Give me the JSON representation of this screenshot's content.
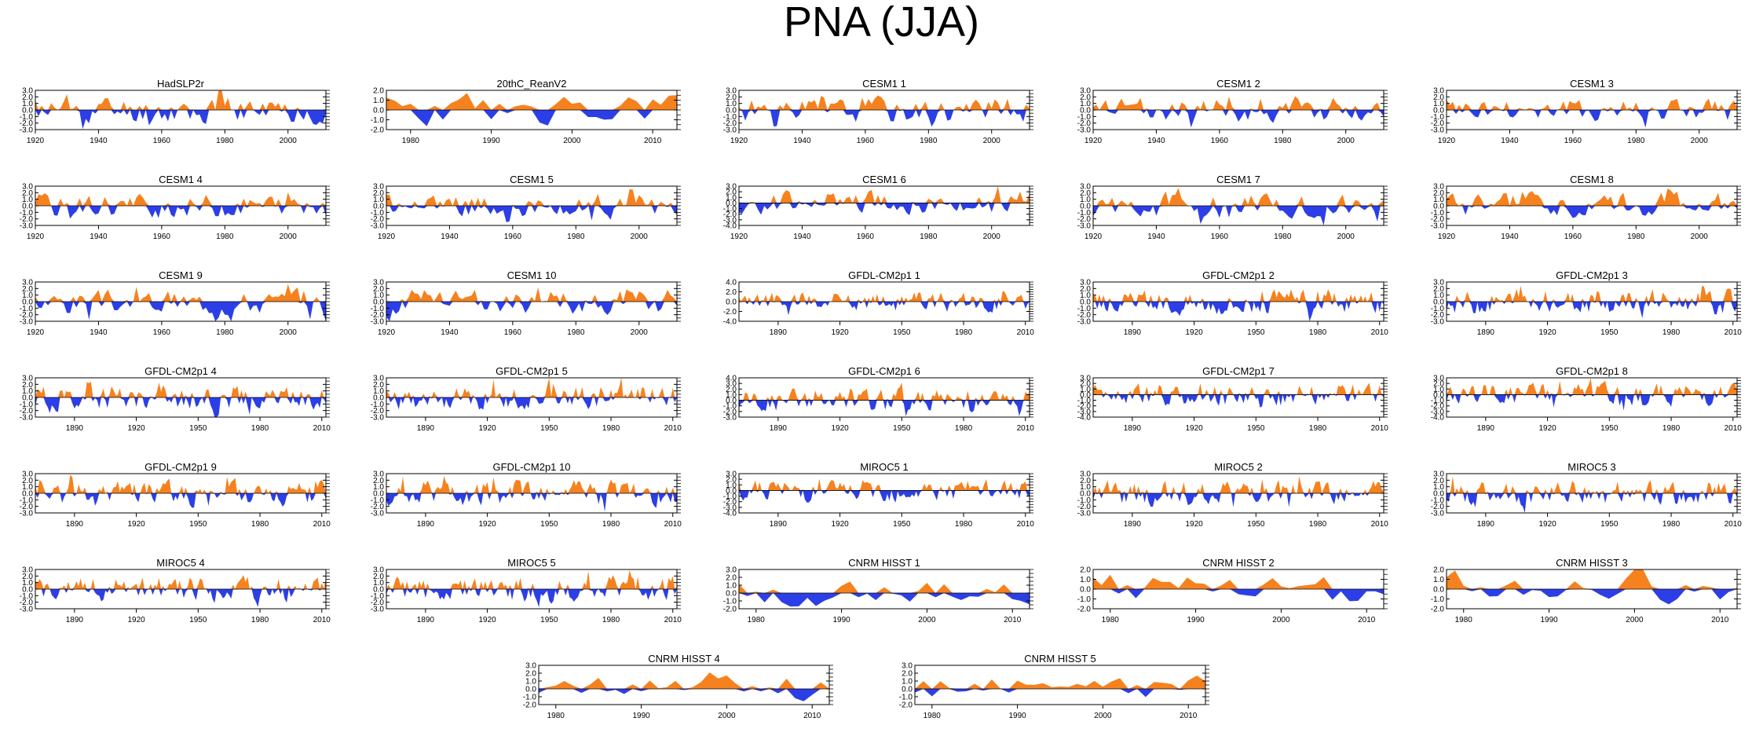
{
  "figure": {
    "title": "PNA (JJA)",
    "colors": {
      "positive": "#f5821f",
      "negative": "#2c3fe6",
      "frame": "#000000",
      "zero_line": "#000000"
    }
  },
  "chart_data": [
    {
      "type": "area",
      "title": "HadSLP2r",
      "x_range": [
        1920,
        2012
      ],
      "x_ticks": [
        1920,
        1940,
        1960,
        1980,
        2000
      ],
      "ylim": [
        -3,
        3
      ],
      "y_ticks": [
        "3.0",
        "2.0",
        "1.0",
        "0.0",
        "-1.0",
        "-2.0",
        "-3.0"
      ],
      "sample_count": 93,
      "seed": 11,
      "amplitude": 1.7,
      "values_note": "yearly index values"
    },
    {
      "type": "area",
      "title": "20thC_ReanV2",
      "x_range": [
        1977,
        2013
      ],
      "x_ticks": [
        1980,
        1990,
        2000,
        2010
      ],
      "ylim": [
        -2,
        2
      ],
      "y_ticks": [
        "2.0",
        "1.0",
        "0.0",
        "-1.0",
        "-2.0"
      ],
      "sample_count": 37,
      "seed": 23,
      "amplitude": 1.3
    },
    {
      "type": "area",
      "title": "CESM1 1",
      "x_range": [
        1920,
        2012
      ],
      "x_ticks": [
        1920,
        1940,
        1960,
        1980,
        2000
      ],
      "ylim": [
        -3,
        3
      ],
      "y_ticks": [
        "3.0",
        "2.0",
        "1.0",
        "0.0",
        "-1.0",
        "-2.0",
        "-3.0"
      ],
      "sample_count": 93,
      "seed": 31,
      "amplitude": 1.5
    },
    {
      "type": "area",
      "title": "CESM1 2",
      "x_range": [
        1920,
        2012
      ],
      "x_ticks": [
        1920,
        1940,
        1960,
        1980,
        2000
      ],
      "ylim": [
        -3,
        3
      ],
      "y_ticks": [
        "3.0",
        "2.0",
        "1.0",
        "0.0",
        "-1.0",
        "-2.0",
        "-3.0"
      ],
      "sample_count": 93,
      "seed": 37,
      "amplitude": 1.5
    },
    {
      "type": "area",
      "title": "CESM1 3",
      "x_range": [
        1920,
        2012
      ],
      "x_ticks": [
        1920,
        1940,
        1960,
        1980,
        2000
      ],
      "ylim": [
        -3,
        3
      ],
      "y_ticks": [
        "3.0",
        "2.0",
        "1.0",
        "0.0",
        "-1.0",
        "-2.0",
        "-3.0"
      ],
      "sample_count": 93,
      "seed": 41,
      "amplitude": 1.5
    },
    {
      "type": "area",
      "title": "CESM1 4",
      "x_range": [
        1920,
        2012
      ],
      "x_ticks": [
        1920,
        1940,
        1960,
        1980,
        2000
      ],
      "ylim": [
        -3,
        3
      ],
      "y_ticks": [
        "3.0",
        "2.0",
        "1.0",
        "0.0",
        "-1.0",
        "-2.0",
        "-3.0"
      ],
      "sample_count": 93,
      "seed": 43,
      "amplitude": 1.5
    },
    {
      "type": "area",
      "title": "CESM1 5",
      "x_range": [
        1920,
        2012
      ],
      "x_ticks": [
        1920,
        1940,
        1960,
        1980,
        2000
      ],
      "ylim": [
        -3,
        3
      ],
      "y_ticks": [
        "3.0",
        "2.0",
        "1.0",
        "0.0",
        "-1.0",
        "-2.0",
        "-3.0"
      ],
      "sample_count": 93,
      "seed": 47,
      "amplitude": 1.5
    },
    {
      "type": "area",
      "title": "CESM1 6",
      "x_range": [
        1920,
        2012
      ],
      "x_ticks": [
        1920,
        1940,
        1960,
        1980,
        2000
      ],
      "ylim": [
        -4,
        3
      ],
      "y_ticks": [
        "3.0",
        "2.0",
        "1.0",
        "0.0",
        "-1.0",
        "-2.0",
        "-3.0",
        "-4.0"
      ],
      "sample_count": 93,
      "seed": 53,
      "amplitude": 1.6
    },
    {
      "type": "area",
      "title": "CESM1 7",
      "x_range": [
        1920,
        2012
      ],
      "x_ticks": [
        1920,
        1940,
        1960,
        1980,
        2000
      ],
      "ylim": [
        -3,
        3
      ],
      "y_ticks": [
        "3.0",
        "2.0",
        "1.0",
        "0.0",
        "-1.0",
        "-2.0",
        "-3.0"
      ],
      "sample_count": 93,
      "seed": 59,
      "amplitude": 1.5
    },
    {
      "type": "area",
      "title": "CESM1 8",
      "x_range": [
        1920,
        2012
      ],
      "x_ticks": [
        1920,
        1940,
        1960,
        1980,
        2000
      ],
      "ylim": [
        -3,
        3
      ],
      "y_ticks": [
        "3.0",
        "2.0",
        "1.0",
        "0.0",
        "-1.0",
        "-2.0",
        "-3.0"
      ],
      "sample_count": 93,
      "seed": 61,
      "amplitude": 1.5
    },
    {
      "type": "area",
      "title": "CESM1 9",
      "x_range": [
        1920,
        2012
      ],
      "x_ticks": [
        1920,
        1940,
        1960,
        1980,
        2000
      ],
      "ylim": [
        -3,
        3
      ],
      "y_ticks": [
        "3.0",
        "2.0",
        "1.0",
        "0.0",
        "-1.0",
        "-2.0",
        "-3.0"
      ],
      "sample_count": 93,
      "seed": 67,
      "amplitude": 1.5
    },
    {
      "type": "area",
      "title": "CESM1 10",
      "x_range": [
        1920,
        2012
      ],
      "x_ticks": [
        1920,
        1940,
        1960,
        1980,
        2000
      ],
      "ylim": [
        -3,
        3
      ],
      "y_ticks": [
        "3.0",
        "2.0",
        "1.0",
        "0.0",
        "-1.0",
        "-2.0",
        "-3.0"
      ],
      "sample_count": 93,
      "seed": 71,
      "amplitude": 1.5
    },
    {
      "type": "area",
      "title": "GFDL-CM2p1 1",
      "x_range": [
        1871,
        2012
      ],
      "x_ticks": [
        1890,
        1920,
        1950,
        1980,
        2010
      ],
      "ylim": [
        -4,
        4
      ],
      "y_ticks": [
        "4.0",
        "2.0",
        "0.0",
        "-2.0",
        "-4.0"
      ],
      "sample_count": 142,
      "seed": 73,
      "amplitude": 1.6
    },
    {
      "type": "area",
      "title": "GFDL-CM2p1 2",
      "x_range": [
        1871,
        2012
      ],
      "x_ticks": [
        1890,
        1920,
        1950,
        1980,
        2010
      ],
      "ylim": [
        -3,
        3
      ],
      "y_ticks": [
        "3.0",
        "2.0",
        "1.0",
        "0.0",
        "-1.0",
        "-2.0",
        "-3.0"
      ],
      "sample_count": 142,
      "seed": 79,
      "amplitude": 1.5
    },
    {
      "type": "area",
      "title": "GFDL-CM2p1 3",
      "x_range": [
        1871,
        2012
      ],
      "x_ticks": [
        1890,
        1920,
        1950,
        1980,
        2010
      ],
      "ylim": [
        -3,
        3
      ],
      "y_ticks": [
        "3.0",
        "2.0",
        "1.0",
        "0.0",
        "-1.0",
        "-2.0",
        "-3.0"
      ],
      "sample_count": 142,
      "seed": 83,
      "amplitude": 1.5
    },
    {
      "type": "area",
      "title": "GFDL-CM2p1 4",
      "x_range": [
        1871,
        2012
      ],
      "x_ticks": [
        1890,
        1920,
        1950,
        1980,
        2010
      ],
      "ylim": [
        -3,
        3
      ],
      "y_ticks": [
        "3.0",
        "2.0",
        "1.0",
        "0.0",
        "-1.0",
        "-2.0",
        "-3.0"
      ],
      "sample_count": 142,
      "seed": 89,
      "amplitude": 1.5
    },
    {
      "type": "area",
      "title": "GFDL-CM2p1 5",
      "x_range": [
        1871,
        2012
      ],
      "x_ticks": [
        1890,
        1920,
        1950,
        1980,
        2010
      ],
      "ylim": [
        -3,
        3
      ],
      "y_ticks": [
        "3.0",
        "2.0",
        "1.0",
        "0.0",
        "-1.0",
        "-2.0",
        "-3.0"
      ],
      "sample_count": 142,
      "seed": 97,
      "amplitude": 1.5
    },
    {
      "type": "area",
      "title": "GFDL-CM2p1 6",
      "x_range": [
        1871,
        2012
      ],
      "x_ticks": [
        1890,
        1920,
        1950,
        1980,
        2010
      ],
      "ylim": [
        -3,
        4
      ],
      "y_ticks": [
        "4.0",
        "3.0",
        "2.0",
        "1.0",
        "0.0",
        "-1.0",
        "-2.0",
        "-3.0"
      ],
      "sample_count": 142,
      "seed": 101,
      "amplitude": 1.6
    },
    {
      "type": "area",
      "title": "GFDL-CM2p1 7",
      "x_range": [
        1871,
        2012
      ],
      "x_ticks": [
        1890,
        1920,
        1950,
        1980,
        2010
      ],
      "ylim": [
        -4,
        3
      ],
      "y_ticks": [
        "3.0",
        "2.0",
        "1.0",
        "0.0",
        "-1.0",
        "-2.0",
        "-3.0",
        "-4.0"
      ],
      "sample_count": 142,
      "seed": 103,
      "amplitude": 1.6
    },
    {
      "type": "area",
      "title": "GFDL-CM2p1 8",
      "x_range": [
        1871,
        2012
      ],
      "x_ticks": [
        1890,
        1920,
        1950,
        1980,
        2010
      ],
      "ylim": [
        -4,
        3
      ],
      "y_ticks": [
        "3.0",
        "2.0",
        "1.0",
        "0.0",
        "-1.0",
        "-2.0",
        "-3.0",
        "-4.0"
      ],
      "sample_count": 142,
      "seed": 107,
      "amplitude": 1.6
    },
    {
      "type": "area",
      "title": "GFDL-CM2p1 9",
      "x_range": [
        1871,
        2012
      ],
      "x_ticks": [
        1890,
        1920,
        1950,
        1980,
        2010
      ],
      "ylim": [
        -3,
        3
      ],
      "y_ticks": [
        "3.0",
        "2.0",
        "1.0",
        "0.0",
        "-1.0",
        "-2.0",
        "-3.0"
      ],
      "sample_count": 142,
      "seed": 109,
      "amplitude": 1.5
    },
    {
      "type": "area",
      "title": "GFDL-CM2p1 10",
      "x_range": [
        1871,
        2012
      ],
      "x_ticks": [
        1890,
        1920,
        1950,
        1980,
        2010
      ],
      "ylim": [
        -3,
        3
      ],
      "y_ticks": [
        "3.0",
        "2.0",
        "1.0",
        "0.0",
        "-1.0",
        "-2.0",
        "-3.0"
      ],
      "sample_count": 142,
      "seed": 113,
      "amplitude": 1.5
    },
    {
      "type": "area",
      "title": "MIROC5 1",
      "x_range": [
        1871,
        2012
      ],
      "x_ticks": [
        1890,
        1920,
        1950,
        1980,
        2010
      ],
      "ylim": [
        -4,
        3
      ],
      "y_ticks": [
        "3.0",
        "2.0",
        "1.0",
        "0.0",
        "-1.0",
        "-2.0",
        "-3.0",
        "-4.0"
      ],
      "sample_count": 142,
      "seed": 127,
      "amplitude": 1.6
    },
    {
      "type": "area",
      "title": "MIROC5 2",
      "x_range": [
        1871,
        2012
      ],
      "x_ticks": [
        1890,
        1920,
        1950,
        1980,
        2010
      ],
      "ylim": [
        -3,
        3
      ],
      "y_ticks": [
        "3.0",
        "2.0",
        "1.0",
        "0.0",
        "-1.0",
        "-2.0",
        "-3.0"
      ],
      "sample_count": 142,
      "seed": 131,
      "amplitude": 1.5
    },
    {
      "type": "area",
      "title": "MIROC5 3",
      "x_range": [
        1871,
        2012
      ],
      "x_ticks": [
        1890,
        1920,
        1950,
        1980,
        2010
      ],
      "ylim": [
        -3,
        3
      ],
      "y_ticks": [
        "3.0",
        "2.0",
        "1.0",
        "0.0",
        "-1.0",
        "-2.0",
        "-3.0"
      ],
      "sample_count": 142,
      "seed": 137,
      "amplitude": 1.5
    },
    {
      "type": "area",
      "title": "MIROC5 4",
      "x_range": [
        1871,
        2012
      ],
      "x_ticks": [
        1890,
        1920,
        1950,
        1980,
        2010
      ],
      "ylim": [
        -3,
        3
      ],
      "y_ticks": [
        "3.0",
        "2.0",
        "1.0",
        "0.0",
        "-1.0",
        "-2.0",
        "-3.0"
      ],
      "sample_count": 142,
      "seed": 139,
      "amplitude": 1.5
    },
    {
      "type": "area",
      "title": "MIROC5 5",
      "x_range": [
        1871,
        2012
      ],
      "x_ticks": [
        1890,
        1920,
        1950,
        1980,
        2010
      ],
      "ylim": [
        -3,
        3
      ],
      "y_ticks": [
        "3.0",
        "2.0",
        "1.0",
        "0.0",
        "-1.0",
        "-2.0",
        "-3.0"
      ],
      "sample_count": 142,
      "seed": 149,
      "amplitude": 1.5
    },
    {
      "type": "area",
      "title": "CNRM HISST 1",
      "x_range": [
        1978,
        2012
      ],
      "x_ticks": [
        1980,
        1990,
        2000,
        2010
      ],
      "ylim": [
        -2,
        3
      ],
      "y_ticks": [
        "3.0",
        "2.0",
        "1.0",
        "0.0",
        "-1.0",
        "-2.0"
      ],
      "sample_count": 35,
      "seed": 151,
      "amplitude": 1.2
    },
    {
      "type": "area",
      "title": "CNRM HISST 2",
      "x_range": [
        1978,
        2012
      ],
      "x_ticks": [
        1980,
        1990,
        2000,
        2010
      ],
      "ylim": [
        -2,
        2
      ],
      "y_ticks": [
        "2.0",
        "1.0",
        "0.0",
        "-1.0",
        "-2.0"
      ],
      "sample_count": 35,
      "seed": 157,
      "amplitude": 1.2
    },
    {
      "type": "area",
      "title": "CNRM HISST 3",
      "x_range": [
        1978,
        2012
      ],
      "x_ticks": [
        1980,
        1990,
        2000,
        2010
      ],
      "ylim": [
        -2,
        2
      ],
      "y_ticks": [
        "2.0",
        "1.0",
        "0.0",
        "-1.0",
        "-2.0"
      ],
      "sample_count": 35,
      "seed": 163,
      "amplitude": 1.2
    },
    {
      "type": "area",
      "title": "CNRM HISST 4",
      "x_range": [
        1978,
        2012
      ],
      "x_ticks": [
        1980,
        1990,
        2000,
        2010
      ],
      "ylim": [
        -2,
        3
      ],
      "y_ticks": [
        "3.0",
        "2.0",
        "1.0",
        "0.0",
        "-1.0",
        "-2.0"
      ],
      "sample_count": 35,
      "seed": 167,
      "amplitude": 1.2
    },
    {
      "type": "area",
      "title": "CNRM HISST 5",
      "x_range": [
        1978,
        2012
      ],
      "x_ticks": [
        1980,
        1990,
        2000,
        2010
      ],
      "ylim": [
        -2,
        3
      ],
      "y_ticks": [
        "3.0",
        "2.0",
        "1.0",
        "0.0",
        "-1.0",
        "-2.0"
      ],
      "sample_count": 35,
      "seed": 173,
      "amplitude": 1.2
    }
  ]
}
